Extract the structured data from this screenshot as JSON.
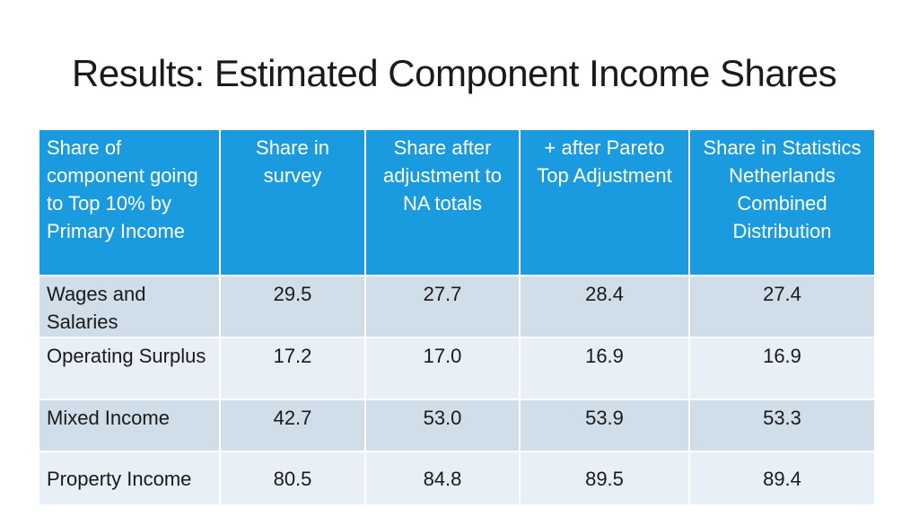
{
  "slide": {
    "title": "Results: Estimated Component Income Shares"
  },
  "table": {
    "headers": [
      "Share of component going to Top 10% by Primary Income",
      "Share  in survey",
      "Share after adjustment to NA totals",
      "+ after Pareto Top Adjustment",
      "Share in Statistics Netherlands Combined Distribution"
    ],
    "rows": [
      {
        "component": "Wages and Salaries",
        "values": [
          "29.5",
          "27.7",
          "28.4",
          "27.4"
        ]
      },
      {
        "component": "Operating Surplus",
        "values": [
          "17.2",
          "17.0",
          "16.9",
          "16.9"
        ]
      },
      {
        "component": "Mixed Income",
        "values": [
          "42.7",
          "53.0",
          "53.9",
          "53.3"
        ]
      },
      {
        "component": "Property Income",
        "values": [
          "80.5",
          "84.8",
          "89.5",
          "89.4"
        ]
      }
    ]
  },
  "colors": {
    "header_bg": "#1a9be0",
    "row_odd_bg": "#cfdee9",
    "row_even_bg": "#e8eff6"
  }
}
